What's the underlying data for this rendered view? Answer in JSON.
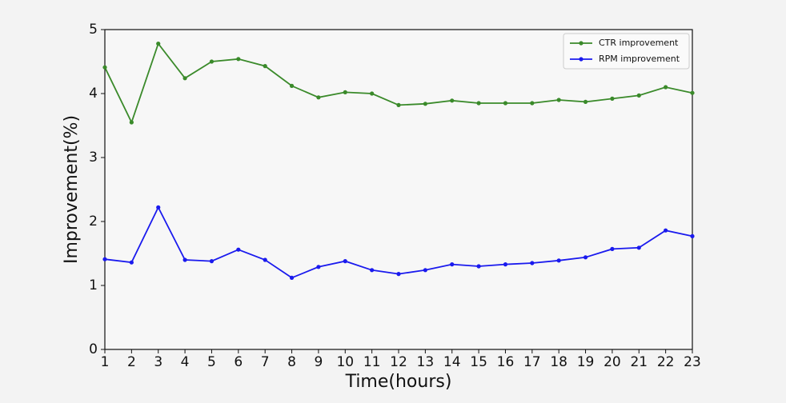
{
  "chart_data": {
    "type": "line",
    "x": [
      1,
      2,
      3,
      4,
      5,
      6,
      7,
      8,
      9,
      10,
      11,
      12,
      13,
      14,
      15,
      16,
      17,
      18,
      19,
      20,
      21,
      22,
      23
    ],
    "series": [
      {
        "name": "CTR improvement",
        "color": "#3a8a2a",
        "values": [
          4.41,
          3.55,
          4.78,
          4.24,
          4.5,
          4.54,
          4.43,
          4.12,
          3.94,
          4.02,
          4.0,
          3.82,
          3.84,
          3.89,
          3.85,
          3.85,
          3.85,
          3.9,
          3.87,
          3.92,
          3.97,
          4.1,
          4.01
        ]
      },
      {
        "name": "RPM improvement",
        "color": "#1a1aee",
        "values": [
          1.41,
          1.36,
          2.22,
          1.4,
          1.38,
          1.56,
          1.4,
          1.12,
          1.29,
          1.38,
          1.24,
          1.18,
          1.24,
          1.33,
          1.3,
          1.33,
          1.35,
          1.39,
          1.44,
          1.57,
          1.59,
          1.86,
          1.77
        ]
      }
    ],
    "xlabel": "Time(hours)",
    "ylabel": "Improvement(%)",
    "xlim": [
      1,
      23
    ],
    "xticks": [
      1,
      2,
      3,
      4,
      5,
      6,
      7,
      8,
      9,
      10,
      11,
      12,
      13,
      14,
      15,
      16,
      17,
      18,
      19,
      20,
      21,
      22,
      23
    ],
    "ylim": [
      0,
      5
    ],
    "yticks": [
      0,
      1,
      2,
      3,
      4,
      5
    ],
    "legend": "upper right"
  }
}
